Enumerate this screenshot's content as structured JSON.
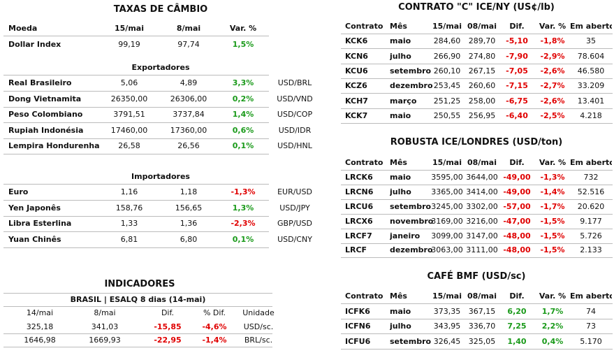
{
  "exchange": {
    "title": "TAXAS DE CÂMBIO",
    "header": [
      "Moeda",
      "15/mai",
      "8/mai",
      "Var. %"
    ],
    "dollar": [
      "Dollar Index",
      "99,19",
      "97,74",
      "1,5%"
    ],
    "groups": [
      {
        "title": "Exportadores",
        "rows": [
          [
            "Real Brasileiro",
            "5,06",
            "4,89",
            "3,3%",
            "USD/BRL"
          ],
          [
            "Dong Vietnamita",
            "26350,00",
            "26306,00",
            "0,2%",
            "USD/VND"
          ],
          [
            "Peso Colombiano",
            "3791,51",
            "3737,84",
            "1,4%",
            "USD/COP"
          ],
          [
            "Rupiah Indonésia",
            "17460,00",
            "17360,00",
            "0,6%",
            "USD/IDR"
          ],
          [
            "Lempira Hondurenha",
            "26,58",
            "26,56",
            "0,1%",
            "USD/HNL"
          ]
        ]
      },
      {
        "title": "Importadores",
        "rows": [
          [
            "Euro",
            "1,16",
            "1,18",
            "-1,3%",
            "EUR/USD"
          ],
          [
            "Yen Japonês",
            "158,76",
            "156,65",
            "1,3%",
            "USD/JPY"
          ],
          [
            "Libra Esterlina",
            "1,33",
            "1,36",
            "-2,3%",
            "GBP/USD"
          ],
          [
            "Yuan Chinês",
            "6,81",
            "6,80",
            "0,1%",
            "USD/CNY"
          ]
        ]
      }
    ]
  },
  "indicators": {
    "title": "INDICADORES",
    "subtitle": "BRASIL | ESALQ 8 dias (14-mai)",
    "header": [
      "14/mai",
      "8/mai",
      "Dif.",
      "% Dif.",
      "Unidade"
    ],
    "rows": [
      [
        "325,18",
        "341,03",
        "-15,85",
        "-4,6%",
        "USD/sc."
      ],
      [
        "1646,98",
        "1669,93",
        "-22,95",
        "-1,4%",
        "BRL/sc."
      ]
    ]
  },
  "futures": [
    {
      "title": "CONTRATO \"C\" ICE/NY (US¢/lb)",
      "header": [
        "Contrato",
        "Mês",
        "15/mai",
        "08/mai",
        "Dif.",
        "Var. %",
        "Em aberto"
      ],
      "rows": [
        [
          "KCK6",
          "maio",
          "284,60",
          "289,70",
          "-5,10",
          "-1,8%",
          "35"
        ],
        [
          "KCN6",
          "julho",
          "266,90",
          "274,80",
          "-7,90",
          "-2,9%",
          "78.604"
        ],
        [
          "KCU6",
          "setembro",
          "260,10",
          "267,15",
          "-7,05",
          "-2,6%",
          "46.580"
        ],
        [
          "KCZ6",
          "dezembro",
          "253,45",
          "260,60",
          "-7,15",
          "-2,7%",
          "33.209"
        ],
        [
          "KCH7",
          "março",
          "251,25",
          "258,00",
          "-6,75",
          "-2,6%",
          "13.401"
        ],
        [
          "KCK7",
          "maio",
          "250,55",
          "256,95",
          "-6,40",
          "-2,5%",
          "4.218"
        ]
      ]
    },
    {
      "title": "ROBUSTA ICE/LONDRES (USD/ton)",
      "header": [
        "Contrato",
        "Mês",
        "15/mai",
        "08/mai",
        "Dif.",
        "Var. %",
        "Em aberto"
      ],
      "rows": [
        [
          "LRCK6",
          "maio",
          "3595,00",
          "3644,00",
          "-49,00",
          "-1,3%",
          "732"
        ],
        [
          "LRCN6",
          "julho",
          "3365,00",
          "3414,00",
          "-49,00",
          "-1,4%",
          "52.516"
        ],
        [
          "LRCU6",
          "setembro",
          "3245,00",
          "3302,00",
          "-57,00",
          "-1,7%",
          "20.620"
        ],
        [
          "LRCX6",
          "novembro",
          "3169,00",
          "3216,00",
          "-47,00",
          "-1,5%",
          "9.177"
        ],
        [
          "LRCF7",
          "janeiro",
          "3099,00",
          "3147,00",
          "-48,00",
          "-1,5%",
          "5.726"
        ],
        [
          "LRCF",
          "dezembro",
          "3063,00",
          "3111,00",
          "-48,00",
          "-1,5%",
          "2.133"
        ]
      ]
    },
    {
      "title": "CAFÉ BMF (USD/sc)",
      "header": [
        "Contrato",
        "Mês",
        "15/mai",
        "08/mai",
        "Dif.",
        "Var. %",
        "Em aberto"
      ],
      "rows": [
        [
          "ICFK6",
          "maio",
          "373,35",
          "367,15",
          "6,20",
          "1,7%",
          "74"
        ],
        [
          "ICFN6",
          "julho",
          "343,95",
          "336,70",
          "7,25",
          "2,2%",
          "73"
        ],
        [
          "ICFU6",
          "setembro",
          "326,45",
          "325,05",
          "1,40",
          "0,4%",
          "5.170"
        ]
      ]
    }
  ]
}
